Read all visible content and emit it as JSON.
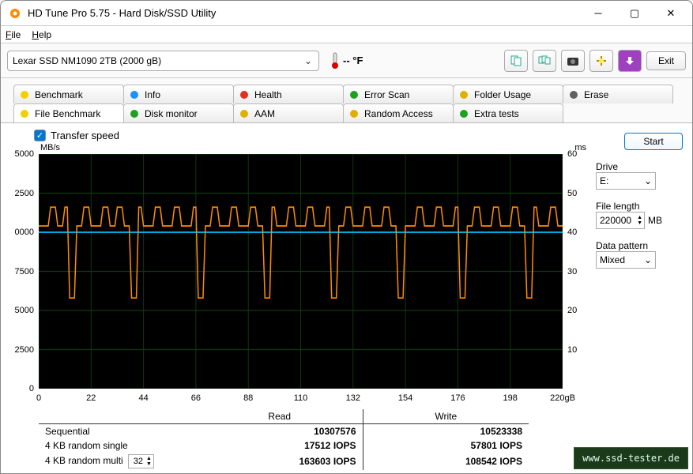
{
  "window": {
    "title": "HD Tune Pro 5.75 - Hard Disk/SSD Utility"
  },
  "menu": {
    "file": "File",
    "help": "Help"
  },
  "toolbar": {
    "drive": "Lexar SSD NM1090 2TB (2000 gB)",
    "temp_text": "-- °F",
    "exit": "Exit"
  },
  "tabs": {
    "row1": [
      "Benchmark",
      "Info",
      "Health",
      "Error Scan",
      "Folder Usage",
      "Erase"
    ],
    "row2": [
      "File Benchmark",
      "Disk monitor",
      "AAM",
      "Random Access",
      "Extra tests"
    ],
    "active": "File Benchmark"
  },
  "transfer_speed": {
    "label": "Transfer speed",
    "checked": true
  },
  "chart": {
    "ylabel_left": "MB/s",
    "ylabel_right": "ms",
    "xunit": "gB",
    "left_ticks": [
      "5000",
      "2500",
      "0000",
      "7500",
      "5000",
      "2500",
      "0"
    ],
    "right_ticks": [
      "60",
      "50",
      "40",
      "30",
      "20",
      "10",
      ""
    ],
    "x_ticks": [
      "0",
      "22",
      "44",
      "66",
      "88",
      "110",
      "132",
      "154",
      "176",
      "198",
      "220"
    ],
    "x_min": 0,
    "x_max": 220,
    "background": "#000000",
    "grid_color": "#103810",
    "line1_color": "#ff8c00",
    "line2_color": "#00bfff",
    "access_baseline": 40,
    "transfer_baseline": 10400,
    "transfer_dips": [
      14,
      40,
      68,
      96,
      124,
      152,
      178,
      206
    ],
    "top_peaks": [
      6,
      12,
      20,
      28,
      34,
      42,
      50,
      58,
      66,
      74,
      82,
      90,
      98,
      106,
      114,
      122,
      130,
      138,
      146,
      152,
      160,
      168,
      176,
      184,
      192,
      200,
      208,
      216
    ],
    "left_min": 0,
    "left_max": 15000
  },
  "results": {
    "headers": [
      "",
      "Read",
      "Write"
    ],
    "rows": [
      {
        "label": "Sequential",
        "read": "10307576",
        "write": "10523338",
        "spin": null
      },
      {
        "label": "4 KB random single",
        "read": "17512 IOPS",
        "write": "57801 IOPS",
        "spin": null
      },
      {
        "label": "4 KB random multi",
        "read": "163603 IOPS",
        "write": "108542 IOPS",
        "spin": "32"
      }
    ]
  },
  "sidebar": {
    "start": "Start",
    "drive_label": "Drive",
    "drive_value": "E:",
    "filelen_label": "File length",
    "filelen_value": "220000",
    "filelen_unit": "MB",
    "pattern_label": "Data pattern",
    "pattern_value": "Mixed"
  },
  "watermark": "www.ssd-tester.de",
  "tab_icons": {
    "Benchmark": "#f0d000",
    "Info": "#1e90ff",
    "Health": "#e03020",
    "Error Scan": "#20a020",
    "Folder Usage": "#e0b000",
    "Erase": "#606060",
    "File Benchmark": "#f0d000",
    "Disk monitor": "#20a020",
    "AAM": "#e0b000",
    "Random Access": "#e0b000",
    "Extra tests": "#20a020"
  },
  "colors": {
    "accent": "#0078d7"
  }
}
